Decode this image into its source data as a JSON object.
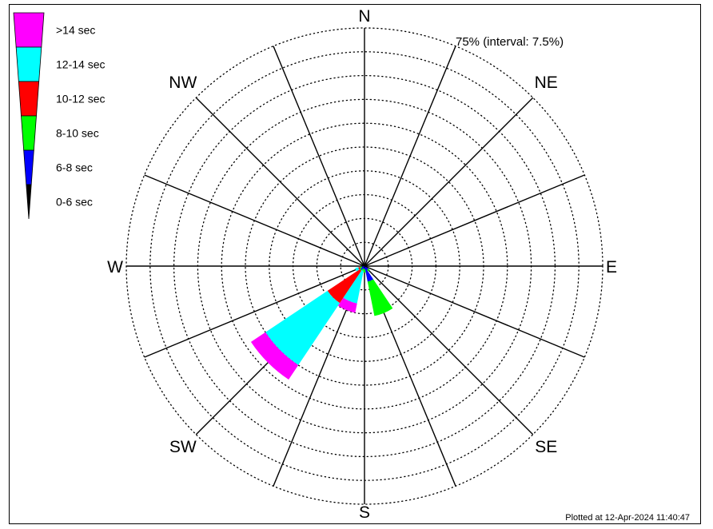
{
  "chart_data": {
    "type": "wind-rose",
    "directions": [
      {
        "name": "N",
        "deg": 0
      },
      {
        "name": "NE",
        "deg": 45
      },
      {
        "name": "E",
        "deg": 90
      },
      {
        "name": "SE",
        "deg": 135
      },
      {
        "name": "S",
        "deg": 180
      },
      {
        "name": "SW",
        "deg": 225
      },
      {
        "name": "W",
        "deg": 270
      },
      {
        "name": "NW",
        "deg": 315
      }
    ],
    "sector_lines_deg": [
      0,
      22.5,
      45,
      67.5,
      90,
      112.5,
      135,
      157.5,
      180,
      202.5,
      225,
      247.5,
      270,
      292.5,
      315,
      337.5
    ],
    "radial_max_percent": 75,
    "radial_interval_percent": 7.5,
    "ring_label": "75% (interval: 7.5%)",
    "legend": {
      "placement": "top-left",
      "entries": [
        {
          "label": ">14 sec",
          "color": "#ff00ff"
        },
        {
          "label": "12-14 sec",
          "color": "#00ffff"
        },
        {
          "label": "10-12 sec",
          "color": "#ff0000"
        },
        {
          "label": "8-10 sec",
          "color": "#00ff00"
        },
        {
          "label": "6-8 sec",
          "color": "#0000ff"
        },
        {
          "label": "0-6 sec",
          "color": "#000000"
        }
      ]
    },
    "series_order": [
      "0-6 sec",
      "6-8 sec",
      "8-10 sec",
      "10-12 sec",
      "12-14 sec",
      ">14 sec"
    ],
    "petals": [
      {
        "direction_deg": 225,
        "cumulative_percent": [
          0,
          1.5,
          1.8,
          14,
          37.5,
          43
        ],
        "colors": [
          "#000000",
          "#0000ff",
          "#00ff00",
          "#ff0000",
          "#00ffff",
          "#ff00ff"
        ]
      },
      {
        "direction_deg": 202.5,
        "cumulative_percent": [
          0,
          0.8,
          1.5,
          1.5,
          12,
          15
        ],
        "colors": [
          "#000000",
          "#0000ff",
          "#00ff00",
          "#ff0000",
          "#00ffff",
          "#ff00ff"
        ]
      },
      {
        "direction_deg": 157.5,
        "cumulative_percent": [
          0.5,
          5,
          16,
          16,
          16,
          16
        ],
        "colors": [
          "#000000",
          "#0000ff",
          "#00ff00",
          "#ff0000",
          "#00ffff",
          "#ff00ff"
        ]
      },
      {
        "direction_deg": 247.5,
        "cumulative_percent": [
          0,
          0.8,
          1.5,
          2,
          3,
          3
        ],
        "colors": [
          "#000000",
          "#0000ff",
          "#00ff00",
          "#ff0000",
          "#00ffff",
          "#ff00ff"
        ]
      },
      {
        "direction_deg": 180,
        "cumulative_percent": [
          0.5,
          1,
          2,
          2,
          2,
          2
        ],
        "colors": [
          "#000000",
          "#0000ff",
          "#00ff00",
          "#ff0000",
          "#00ffff",
          "#ff00ff"
        ]
      },
      {
        "direction_deg": 135,
        "cumulative_percent": [
          0.3,
          1.5,
          2,
          2,
          2,
          2
        ],
        "colors": [
          "#000000",
          "#0000ff",
          "#00ff00",
          "#ff0000",
          "#00ffff",
          "#ff00ff"
        ]
      }
    ],
    "footer": "Plotted at 12-Apr-2024 11:40:47"
  }
}
